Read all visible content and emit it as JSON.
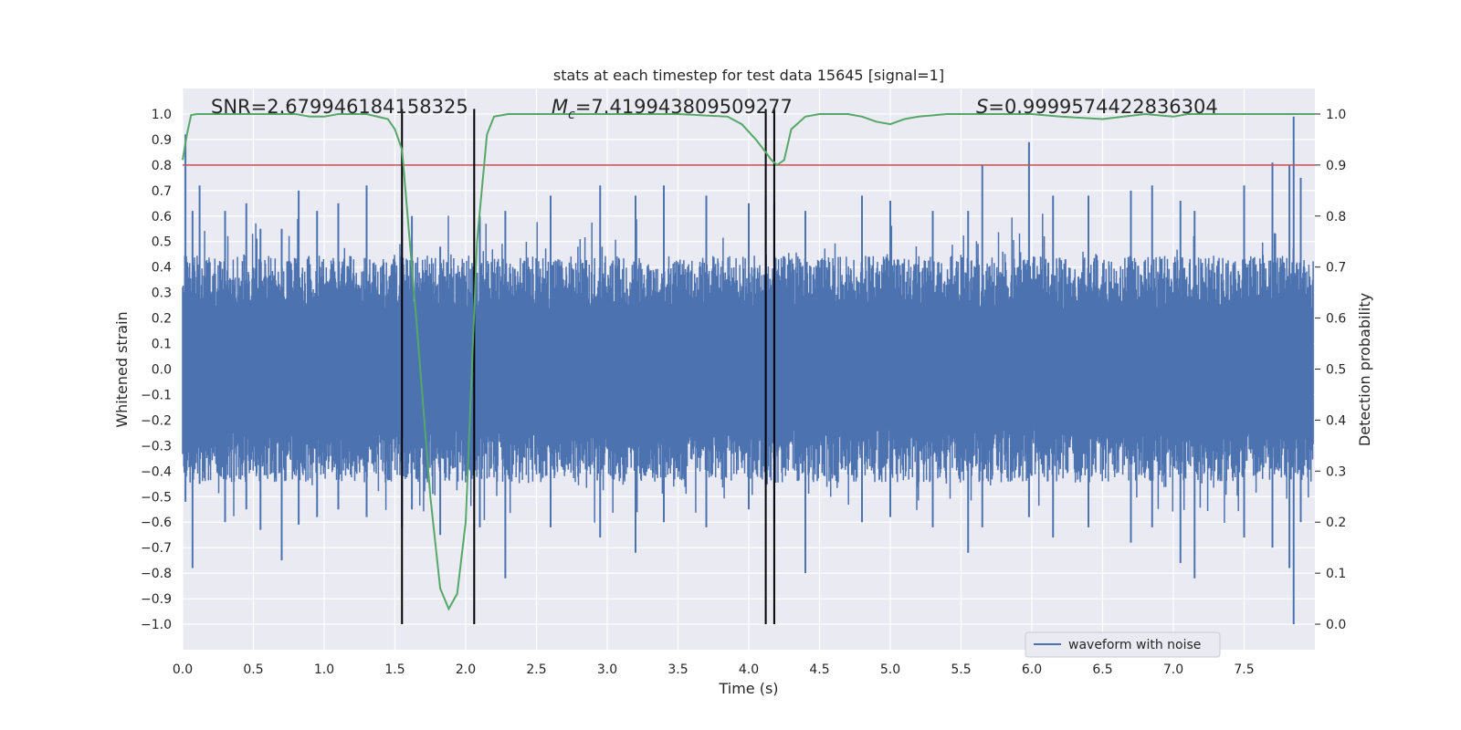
{
  "chart_data": {
    "type": "line",
    "title": "stats at each timestep for test data 15645 [signal=1]",
    "xlabel": "Time (s)",
    "ylabel": "Whitened strain",
    "y2label": "Detection probability",
    "xlim": [
      0.0,
      8.0
    ],
    "ylim": [
      -1.1,
      1.1
    ],
    "y2lim": [
      -0.05,
      1.05
    ],
    "xticks": [
      0.0,
      0.5,
      1.0,
      1.5,
      2.0,
      2.5,
      3.0,
      3.5,
      4.0,
      4.5,
      5.0,
      5.5,
      6.0,
      6.5,
      7.0,
      7.5
    ],
    "xtick_labels": [
      "0.0",
      "0.5",
      "1.0",
      "1.5",
      "2.0",
      "2.5",
      "3.0",
      "3.5",
      "4.0",
      "4.5",
      "5.0",
      "5.5",
      "6.0",
      "6.5",
      "7.0",
      "7.5"
    ],
    "yticks": [
      1.0,
      0.9,
      0.8,
      0.7,
      0.6,
      0.5,
      0.4,
      0.3,
      0.2,
      0.1,
      0.0,
      -0.1,
      -0.2,
      -0.3,
      -0.4,
      -0.5,
      -0.6,
      -0.7,
      -0.8,
      -0.9,
      -1.0
    ],
    "ytick_labels": [
      "1.0",
      "0.9",
      "0.8",
      "0.7",
      "0.6",
      "0.5",
      "0.4",
      "0.3",
      "0.2",
      "0.1",
      "0.0",
      "−0.1",
      "−0.2",
      "−0.3",
      "−0.4",
      "−0.5",
      "−0.6",
      "−0.7",
      "−0.8",
      "−0.9",
      "−1.0"
    ],
    "y2ticks": [
      1.0,
      0.9,
      0.8,
      0.7,
      0.6,
      0.5,
      0.4,
      0.3,
      0.2,
      0.1,
      0.0
    ],
    "y2tick_labels": [
      "1.0",
      "0.9",
      "0.8",
      "0.7",
      "0.6",
      "0.5",
      "0.4",
      "0.3",
      "0.2",
      "0.1",
      "0.0"
    ],
    "annotations": {
      "snr": "SNR=2.679946184158325",
      "mc_symbol": "M",
      "mc_sub": "c",
      "mc_value": "=7.419943809509277",
      "s_symbol": "S",
      "s_value": "=0.9999574422836304"
    },
    "threshold": 0.9,
    "vertical_lines": [
      1.55,
      2.06,
      4.12,
      4.18
    ],
    "waveform": {
      "name": "waveform with noise",
      "color": "#4c72b0",
      "envelope_typical": 0.38,
      "spikes": [
        {
          "t": 0.02,
          "up": 0.92,
          "down": -0.52
        },
        {
          "t": 0.07,
          "up": 0.62,
          "down": -0.78
        },
        {
          "t": 0.12,
          "up": 0.72,
          "down": -0.45
        },
        {
          "t": 0.3,
          "up": 0.62,
          "down": -0.6
        },
        {
          "t": 0.45,
          "up": 0.65,
          "down": -0.55
        },
        {
          "t": 0.55,
          "up": 0.55,
          "down": -0.63
        },
        {
          "t": 0.7,
          "up": 0.55,
          "down": -0.75
        },
        {
          "t": 0.82,
          "up": 0.7,
          "down": -0.61
        },
        {
          "t": 0.95,
          "up": 0.62,
          "down": -0.58
        },
        {
          "t": 1.1,
          "up": 0.65,
          "down": -0.55
        },
        {
          "t": 1.3,
          "up": 0.72,
          "down": -0.58
        },
        {
          "t": 1.55,
          "up": 0.62,
          "down": -0.62
        },
        {
          "t": 1.62,
          "up": 0.6,
          "down": -0.55
        },
        {
          "t": 1.82,
          "up": 0.48,
          "down": -0.65
        },
        {
          "t": 2.1,
          "up": 0.6,
          "down": -0.62
        },
        {
          "t": 2.28,
          "up": 0.62,
          "down": -0.82
        },
        {
          "t": 2.6,
          "up": 0.68,
          "down": -0.62
        },
        {
          "t": 2.95,
          "up": 0.72,
          "down": -0.66
        },
        {
          "t": 3.2,
          "up": 0.68,
          "down": -0.72
        },
        {
          "t": 3.4,
          "up": 0.72,
          "down": -0.6
        },
        {
          "t": 3.7,
          "up": 0.68,
          "down": -0.62
        },
        {
          "t": 4.0,
          "up": 0.65,
          "down": -0.55
        },
        {
          "t": 4.12,
          "up": 0.68,
          "down": -0.45
        },
        {
          "t": 4.18,
          "up": 0.65,
          "down": -0.6
        },
        {
          "t": 4.4,
          "up": 0.62,
          "down": -0.58
        },
        {
          "t": 4.4,
          "up": 0.6,
          "down": -0.8
        },
        {
          "t": 4.8,
          "up": 0.68,
          "down": -0.6
        },
        {
          "t": 5.0,
          "up": 0.66,
          "down": -0.58
        },
        {
          "t": 5.3,
          "up": 0.62,
          "down": -0.62
        },
        {
          "t": 5.55,
          "up": 0.62,
          "down": -0.72
        },
        {
          "t": 5.65,
          "up": 0.8,
          "down": -0.62
        },
        {
          "t": 5.98,
          "up": 0.89,
          "down": -0.58
        },
        {
          "t": 6.15,
          "up": 0.68,
          "down": -0.66
        },
        {
          "t": 6.4,
          "up": 0.68,
          "down": -0.62
        },
        {
          "t": 6.7,
          "up": 0.7,
          "down": -0.68
        },
        {
          "t": 6.85,
          "up": 0.72,
          "down": -0.62
        },
        {
          "t": 7.05,
          "up": 0.66,
          "down": -0.76
        },
        {
          "t": 7.15,
          "up": 0.62,
          "down": -0.82
        },
        {
          "t": 7.5,
          "up": 0.72,
          "down": -0.66
        },
        {
          "t": 7.7,
          "up": 0.81,
          "down": -0.7
        },
        {
          "t": 7.82,
          "up": 0.8,
          "down": -0.78
        },
        {
          "t": 7.85,
          "up": 0.99,
          "down": -1.0
        },
        {
          "t": 7.9,
          "up": 0.75,
          "down": -0.6
        }
      ]
    },
    "probability": {
      "color": "#55a868",
      "t": [
        0.0,
        0.03,
        0.06,
        0.1,
        0.2,
        0.4,
        0.6,
        0.8,
        0.9,
        1.0,
        1.1,
        1.3,
        1.45,
        1.5,
        1.55,
        1.65,
        1.75,
        1.82,
        1.88,
        1.94,
        2.0,
        2.08,
        2.15,
        2.2,
        2.3,
        2.5,
        3.0,
        3.5,
        3.85,
        3.95,
        4.05,
        4.12,
        4.16,
        4.2,
        4.25,
        4.3,
        4.4,
        4.5,
        4.7,
        4.8,
        4.9,
        5.0,
        5.1,
        5.2,
        5.4,
        5.8,
        6.0,
        6.2,
        6.5,
        6.8,
        7.0,
        7.1,
        7.3,
        7.6,
        8.0
      ],
      "values": [
        0.91,
        0.96,
        0.998,
        1.0,
        1.0,
        1.0,
        1.0,
        1.0,
        0.995,
        0.995,
        1.0,
        1.0,
        0.99,
        0.97,
        0.93,
        0.6,
        0.25,
        0.07,
        0.03,
        0.06,
        0.2,
        0.75,
        0.96,
        0.995,
        1.0,
        1.0,
        1.0,
        1.0,
        0.995,
        0.98,
        0.95,
        0.925,
        0.91,
        0.9,
        0.91,
        0.97,
        0.995,
        1.0,
        1.0,
        0.995,
        0.985,
        0.98,
        0.99,
        0.995,
        1.0,
        1.0,
        1.0,
        0.995,
        0.99,
        1.0,
        0.995,
        1.0,
        1.0,
        1.0,
        1.0
      ]
    }
  }
}
